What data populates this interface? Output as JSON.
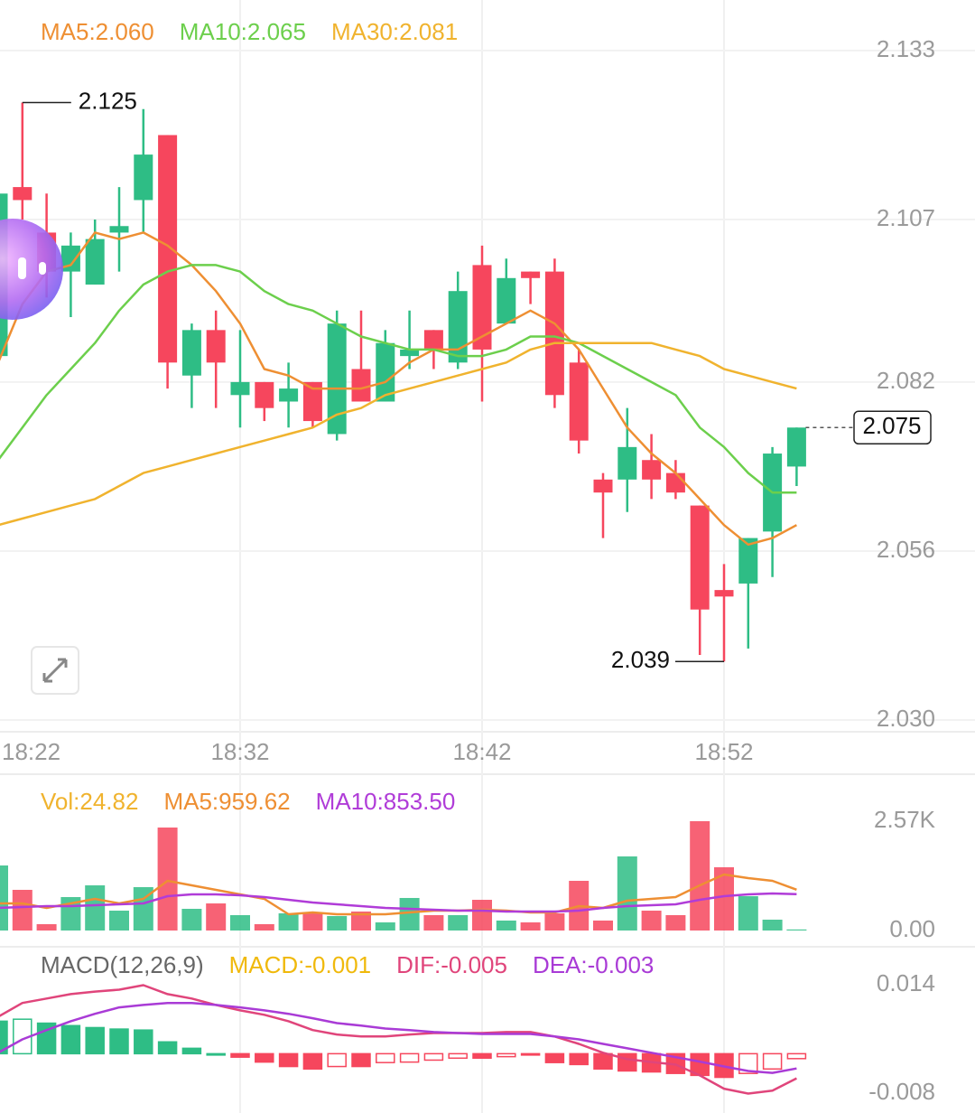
{
  "chart_data": [
    {
      "type": "candlestick",
      "categories": [
        "18:22",
        null,
        null,
        null,
        null,
        null,
        null,
        null,
        null,
        null,
        "18:32",
        null,
        null,
        null,
        null,
        null,
        null,
        null,
        null,
        null,
        "18:42",
        null,
        null,
        null,
        null,
        null,
        null,
        null,
        null,
        null,
        "18:52",
        null,
        null,
        null
      ],
      "open": [
        2.086,
        2.112,
        2.105,
        2.099,
        2.097,
        2.105,
        2.11,
        2.12,
        2.083,
        2.09,
        2.08,
        2.082,
        2.079,
        2.082,
        2.074,
        2.084,
        2.079,
        2.086,
        2.09,
        2.085,
        2.1,
        2.091,
        2.099,
        2.099,
        2.085,
        2.067,
        2.067,
        2.07,
        2.068,
        2.063,
        2.05,
        2.051,
        2.059,
        2.069
      ],
      "high": [
        2.111,
        2.125,
        2.111,
        2.105,
        2.107,
        2.112,
        2.124,
        2.12,
        2.091,
        2.093,
        2.09,
        2.082,
        2.085,
        2.082,
        2.093,
        2.093,
        2.09,
        2.093,
        2.09,
        2.099,
        2.103,
        2.101,
        2.099,
        2.101,
        2.087,
        2.068,
        2.078,
        2.074,
        2.07,
        2.063,
        2.054,
        2.058,
        2.072,
        2.075
      ],
      "low": [
        2.086,
        2.107,
        2.095,
        2.092,
        2.097,
        2.099,
        2.105,
        2.081,
        2.078,
        2.078,
        2.075,
        2.076,
        2.075,
        2.075,
        2.073,
        2.079,
        2.079,
        2.084,
        2.084,
        2.084,
        2.079,
        2.091,
        2.094,
        2.078,
        2.071,
        2.058,
        2.062,
        2.064,
        2.064,
        2.04,
        2.039,
        2.041,
        2.052,
        2.066
      ],
      "close": [
        2.111,
        2.11,
        2.099,
        2.103,
        2.104,
        2.106,
        2.117,
        2.085,
        2.09,
        2.085,
        2.082,
        2.078,
        2.081,
        2.076,
        2.091,
        2.079,
        2.088,
        2.087,
        2.087,
        2.096,
        2.087,
        2.098,
        2.098,
        2.08,
        2.073,
        2.065,
        2.072,
        2.067,
        2.065,
        2.047,
        2.049,
        2.058,
        2.071,
        2.075
      ],
      "up_color": "#2ebd85",
      "down_color": "#f6465d",
      "series": [
        {
          "name": "MA5:2.060",
          "color": "#ee8f33",
          "values": [
            2.085,
            2.094,
            2.099,
            2.1,
            2.105,
            2.104,
            2.105,
            2.103,
            2.1,
            2.096,
            2.091,
            2.084,
            2.083,
            2.081,
            2.081,
            2.081,
            2.082,
            2.085,
            2.087,
            2.087,
            2.089,
            2.091,
            2.093,
            2.091,
            2.087,
            2.081,
            2.075,
            2.071,
            2.068,
            2.064,
            2.06,
            2.057,
            2.058,
            2.06
          ]
        },
        {
          "name": "MA10:2.065",
          "color": "#6ccf4c",
          "values": [
            2.07,
            2.075,
            2.08,
            2.084,
            2.088,
            2.093,
            2.097,
            2.099,
            2.1,
            2.1,
            2.099,
            2.096,
            2.094,
            2.093,
            2.091,
            2.089,
            2.088,
            2.087,
            2.087,
            2.086,
            2.086,
            2.087,
            2.089,
            2.089,
            2.088,
            2.086,
            2.084,
            2.082,
            2.08,
            2.075,
            2.072,
            2.068,
            2.065,
            2.065
          ]
        },
        {
          "name": "MA30:2.081",
          "color": "#f0b32e",
          "values": [
            2.06,
            2.061,
            2.062,
            2.063,
            2.064,
            2.066,
            2.068,
            2.069,
            2.07,
            2.071,
            2.072,
            2.073,
            2.074,
            2.075,
            2.077,
            2.078,
            2.08,
            2.081,
            2.082,
            2.083,
            2.084,
            2.085,
            2.087,
            2.088,
            2.088,
            2.088,
            2.088,
            2.088,
            2.087,
            2.086,
            2.084,
            2.083,
            2.082,
            2.081
          ]
        }
      ],
      "ylim": [
        2.03,
        2.133
      ],
      "yticks": [
        2.133,
        2.107,
        2.082,
        2.056,
        {
          "value": 2.03,
          "label": "2.030"
        }
      ],
      "grid": true
    },
    {
      "type": "volume",
      "series": [
        {
          "name": "Vol:24.82",
          "color": "#f0b32e",
          "values": [
            1529,
            956,
            149,
            786,
            1062,
            467,
            1020,
            2421,
            510,
            637,
            361,
            149,
            404,
            404,
            340,
            446,
            191,
            765,
            361,
            361,
            722,
            234,
            191,
            404,
            1168,
            234,
            1742,
            467,
            361,
            2570,
            1487,
            807,
            255,
            24.82
          ]
        },
        {
          "name": "MA5:959.62",
          "color": "#ee8f33",
          "values": [
            637,
            637,
            531,
            637,
            743,
            637,
            743,
            1168,
            1062,
            956,
            850,
            743,
            382,
            425,
            382,
            382,
            382,
            425,
            467,
            467,
            488,
            467,
            425,
            425,
            573,
            531,
            701,
            743,
            786,
            1062,
            1317,
            1232,
            1168,
            959.62
          ]
        },
        {
          "name": "MA10:853.50",
          "color": "#b03cd8",
          "values": [
            531,
            552,
            573,
            573,
            595,
            616,
            637,
            807,
            850,
            850,
            828,
            786,
            722,
            659,
            616,
            573,
            531,
            510,
            488,
            467,
            467,
            446,
            446,
            446,
            467,
            531,
            573,
            595,
            616,
            722,
            807,
            850,
            870,
            853.5
          ]
        }
      ],
      "ylim": [
        0,
        2570
      ],
      "yticks": [
        {
          "value": 2570,
          "label": "2.57K"
        },
        {
          "value": 0,
          "label": "0.00"
        }
      ]
    },
    {
      "type": "macd",
      "title": "MACD(12,26,9)",
      "series": [
        {
          "name": "MACD:-0.001",
          "color": "#f0b90b",
          "values": [
            0.0066,
            0.007,
            0.0062,
            0.0057,
            0.0053,
            0.005,
            0.0048,
            0.0024,
            0.0011,
            0,
            -0.0007,
            -0.0017,
            -0.0026,
            -0.0031,
            -0.0026,
            -0.0026,
            -0.0018,
            -0.0017,
            -0.0013,
            -0.0009,
            -0.0009,
            -0.0006,
            -0.0002,
            -0.0018,
            -0.0022,
            -0.0031,
            -0.0035,
            -0.0037,
            -0.004,
            -0.0044,
            -0.0048,
            -0.004,
            -0.0031,
            -0.001
          ]
        },
        {
          "name": "DIF:-0.005",
          "color": "#e0457b",
          "values": [
            0.0075,
            0.0103,
            0.0112,
            0.0121,
            0.0126,
            0.013,
            0.0139,
            0.0121,
            0.0112,
            0.0099,
            0.0088,
            0.0079,
            0.0066,
            0.0048,
            0.0039,
            0.0035,
            0.0035,
            0.0039,
            0.0042,
            0.0042,
            0.0042,
            0.0044,
            0.0044,
            0.0035,
            0.002,
            0.0002,
            -0.0011,
            -0.0017,
            -0.0022,
            -0.0044,
            -0.0071,
            -0.0081,
            -0.0075,
            -0.005
          ]
        },
        {
          "name": "DEA:-0.003",
          "color": "#a93bd6",
          "values": [
            0.0002,
            0.0029,
            0.0048,
            0.0066,
            0.0081,
            0.0094,
            0.0099,
            0.0103,
            0.0103,
            0.0099,
            0.0094,
            0.0088,
            0.0081,
            0.0072,
            0.0062,
            0.0057,
            0.0051,
            0.0048,
            0.0044,
            0.0042,
            0.004,
            0.004,
            0.004,
            0.0035,
            0.0029,
            0.002,
            0.0011,
            0.0002,
            -0.0007,
            -0.0016,
            -0.0026,
            -0.0035,
            -0.0039,
            -0.003
          ]
        }
      ],
      "ylim": [
        -0.008,
        0.014
      ],
      "yticks": [
        0.014,
        -0.008
      ]
    }
  ]
}
